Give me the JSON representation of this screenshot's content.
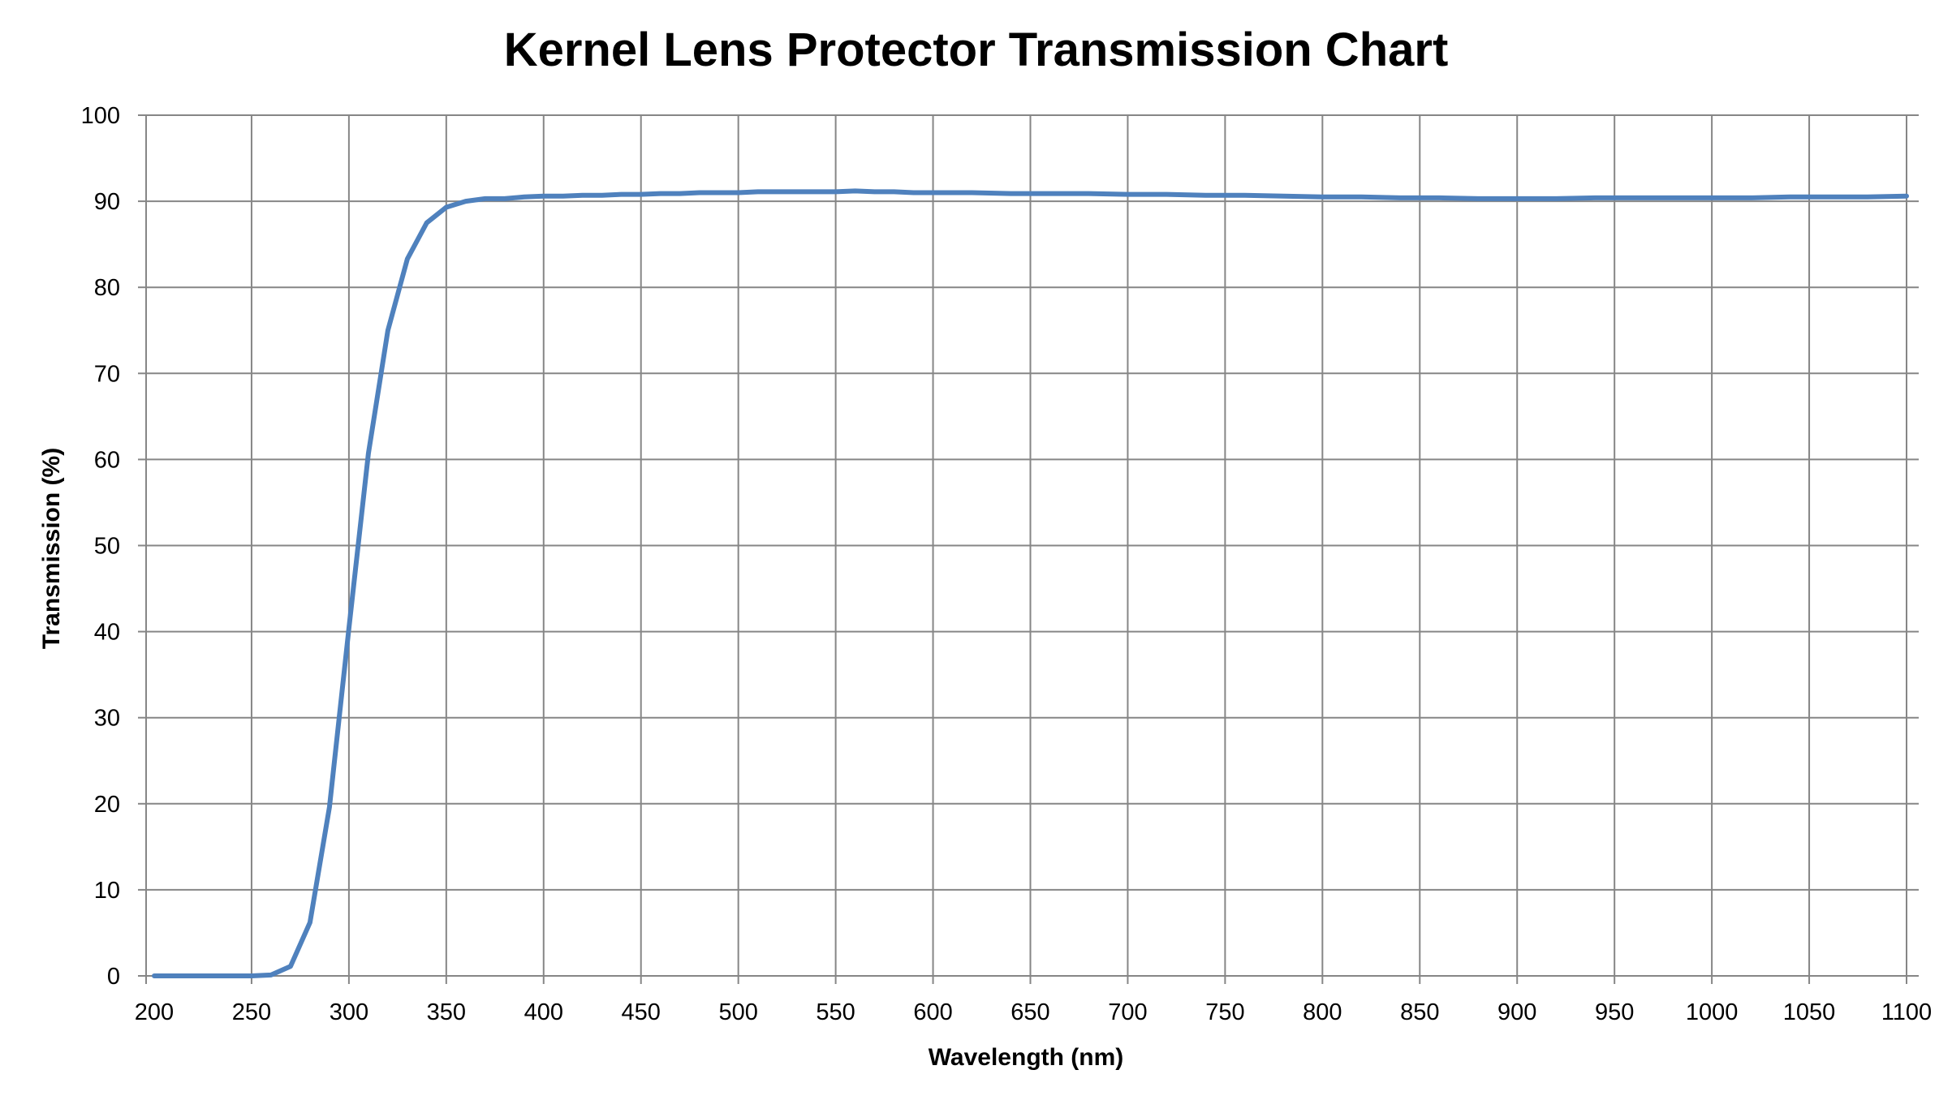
{
  "chart_data": {
    "type": "line",
    "title": "Kernel Lens Protector Transmission Chart",
    "xlabel": "Wavelength (nm)",
    "ylabel": "Transmission (%)",
    "xlim": [
      200,
      1100
    ],
    "ylim": [
      0,
      100
    ],
    "x_ticks": [
      200,
      250,
      300,
      350,
      400,
      450,
      500,
      550,
      600,
      650,
      700,
      750,
      800,
      850,
      900,
      950,
      1000,
      1050,
      1100
    ],
    "y_ticks": [
      0,
      10,
      20,
      30,
      40,
      50,
      60,
      70,
      80,
      90,
      100
    ],
    "grid": true,
    "legend": "none",
    "series_color": "#4F81BD",
    "series": [
      {
        "x": [
          200,
          210,
          220,
          230,
          240,
          250,
          260,
          270,
          280,
          290,
          300,
          310,
          320,
          330,
          340,
          350,
          360,
          370,
          380,
          390,
          400,
          410,
          420,
          430,
          440,
          450,
          460,
          470,
          480,
          490,
          500,
          510,
          520,
          530,
          540,
          550,
          560,
          570,
          580,
          590,
          600,
          620,
          640,
          660,
          680,
          700,
          720,
          740,
          760,
          780,
          800,
          820,
          840,
          860,
          880,
          900,
          920,
          940,
          960,
          980,
          1000,
          1020,
          1040,
          1060,
          1080,
          1100
        ],
        "y": [
          0,
          0,
          0,
          0,
          0,
          0,
          0.1,
          1.1,
          6.2,
          19.6,
          40.4,
          60.7,
          75.0,
          83.3,
          87.5,
          89.3,
          90.0,
          90.3,
          90.3,
          90.5,
          90.6,
          90.6,
          90.7,
          90.7,
          90.8,
          90.8,
          90.9,
          90.9,
          91.0,
          91.0,
          91.0,
          91.1,
          91.1,
          91.1,
          91.1,
          91.1,
          91.2,
          91.1,
          91.1,
          91.0,
          91.0,
          91.0,
          90.9,
          90.9,
          90.9,
          90.8,
          90.8,
          90.7,
          90.7,
          90.6,
          90.5,
          90.5,
          90.4,
          90.4,
          90.3,
          90.3,
          90.3,
          90.4,
          90.4,
          90.4,
          90.4,
          90.4,
          90.5,
          90.5,
          90.5,
          90.6
        ]
      }
    ]
  }
}
